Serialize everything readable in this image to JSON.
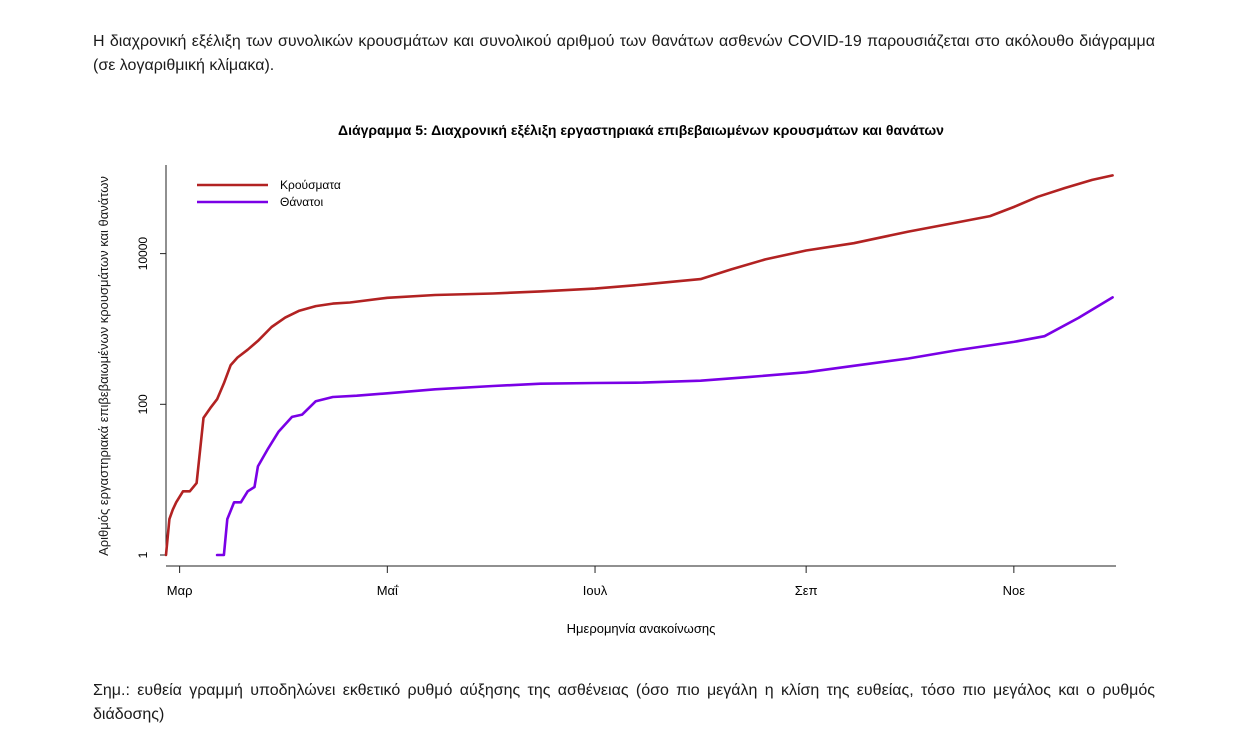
{
  "intro_text": "Η διαχρονική εξέλιξη των συνολικών κρουσμάτων και συνολικού αριθμού των θανάτων ασθενών COVID-19 παρουσιάζεται στο ακόλουθο διάγραμμα (σε λογαριθμική κλίμακα).",
  "note_text": "Σημ.: ευθεία γραμμή υποδηλώνει εκθετικό ρυθμό αύξησης της ασθένειας (όσο πιο μεγάλη η κλίση της ευθείας, τόσο πιο μεγάλος και ο ρυθμός διάδοσης)",
  "chart_data": {
    "type": "line",
    "title": "Διάγραμμα 5: Διαχρονική εξέλιξη εργαστηριακά επιβεβαιωμένων κρουσμάτων και θανάτων",
    "xlabel": "Ημερομηνία ανακοίνωσης",
    "ylabel": "Αριθμός εργαστηριακά επιβεβαιωμένων κρουσμάτων και θανάτων",
    "y_scale": "log",
    "ylim": [
      1,
      150000
    ],
    "y_ticks": [
      1,
      100,
      10000
    ],
    "y_tick_labels": [
      "1",
      "100",
      "10000"
    ],
    "x_ticks": [
      "2020-03-01",
      "2020-05-01",
      "2020-07-01",
      "2020-09-01",
      "2020-11-01"
    ],
    "x_tick_labels": [
      "Μαρ",
      "Μαΐ",
      "Ιουλ",
      "Σεπ",
      "Νοε"
    ],
    "xlim": [
      "2020-02-26",
      "2020-12-01"
    ],
    "legend_position": "top-left",
    "grid": false,
    "series": [
      {
        "name": "Κρούσματα",
        "color": "#b22222",
        "points": [
          [
            "2020-02-26",
            1
          ],
          [
            "2020-02-27",
            3
          ],
          [
            "2020-02-28",
            4
          ],
          [
            "2020-02-29",
            5
          ],
          [
            "2020-03-02",
            7
          ],
          [
            "2020-03-04",
            7
          ],
          [
            "2020-03-06",
            9
          ],
          [
            "2020-03-08",
            66
          ],
          [
            "2020-03-10",
            89
          ],
          [
            "2020-03-12",
            117
          ],
          [
            "2020-03-14",
            190
          ],
          [
            "2020-03-16",
            331
          ],
          [
            "2020-03-18",
            418
          ],
          [
            "2020-03-21",
            530
          ],
          [
            "2020-03-24",
            695
          ],
          [
            "2020-03-28",
            1061
          ],
          [
            "2020-04-01",
            1415
          ],
          [
            "2020-04-05",
            1735
          ],
          [
            "2020-04-10",
            2011
          ],
          [
            "2020-04-15",
            2170
          ],
          [
            "2020-04-20",
            2245
          ],
          [
            "2020-05-01",
            2591
          ],
          [
            "2020-05-15",
            2819
          ],
          [
            "2020-06-01",
            2952
          ],
          [
            "2020-06-15",
            3148
          ],
          [
            "2020-07-01",
            3432
          ],
          [
            "2020-07-15",
            3883
          ],
          [
            "2020-08-01",
            4587
          ],
          [
            "2020-08-10",
            6177
          ],
          [
            "2020-08-20",
            8381
          ],
          [
            "2020-09-01",
            10998
          ],
          [
            "2020-09-15",
            13730
          ],
          [
            "2020-10-01",
            19613
          ],
          [
            "2020-10-15",
            25802
          ],
          [
            "2020-10-25",
            31496
          ],
          [
            "2020-11-01",
            41527
          ],
          [
            "2020-11-08",
            56698
          ],
          [
            "2020-11-16",
            74205
          ],
          [
            "2020-11-24",
            95137
          ],
          [
            "2020-11-30",
            109000
          ]
        ]
      },
      {
        "name": "Θάνατοι",
        "color": "#7a00e6",
        "points": [
          [
            "2020-03-12",
            1
          ],
          [
            "2020-03-14",
            1
          ],
          [
            "2020-03-15",
            3
          ],
          [
            "2020-03-17",
            5
          ],
          [
            "2020-03-19",
            5
          ],
          [
            "2020-03-21",
            7
          ],
          [
            "2020-03-23",
            8
          ],
          [
            "2020-03-24",
            15
          ],
          [
            "2020-03-27",
            26
          ],
          [
            "2020-03-30",
            43
          ],
          [
            "2020-04-03",
            68
          ],
          [
            "2020-04-06",
            73
          ],
          [
            "2020-04-10",
            110
          ],
          [
            "2020-04-15",
            125
          ],
          [
            "2020-04-22",
            130
          ],
          [
            "2020-05-01",
            140
          ],
          [
            "2020-05-15",
            158
          ],
          [
            "2020-06-01",
            175
          ],
          [
            "2020-06-15",
            188
          ],
          [
            "2020-07-01",
            192
          ],
          [
            "2020-07-15",
            194
          ],
          [
            "2020-08-01",
            206
          ],
          [
            "2020-08-15",
            230
          ],
          [
            "2020-09-01",
            266
          ],
          [
            "2020-09-15",
            324
          ],
          [
            "2020-10-01",
            406
          ],
          [
            "2020-10-15",
            520
          ],
          [
            "2020-11-01",
            673
          ],
          [
            "2020-11-10",
            802
          ],
          [
            "2020-11-20",
            1402
          ],
          [
            "2020-11-30",
            2627
          ]
        ]
      }
    ]
  }
}
